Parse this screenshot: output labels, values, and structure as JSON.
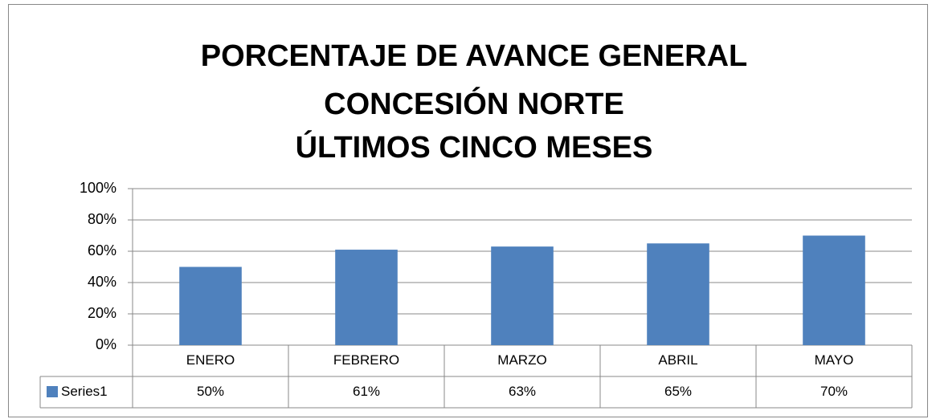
{
  "chart_data": {
    "type": "bar",
    "title": [
      "PORCENTAJE DE AVANCE GENERAL",
      "CONCESIÓN NORTE",
      "ÚLTIMOS CINCO MESES"
    ],
    "categories": [
      "ENERO",
      "FEBRERO",
      "MARZO",
      "ABRIL",
      "MAYO"
    ],
    "series": [
      {
        "name": "Series1",
        "color": "#4f81bd",
        "values": [
          50,
          61,
          63,
          65,
          70
        ],
        "value_labels": [
          "50%",
          "61%",
          "63%",
          "65%",
          "70%"
        ]
      }
    ],
    "ylim": [
      0,
      100
    ],
    "yticks": [
      {
        "value": 0,
        "label": "0%"
      },
      {
        "value": 20,
        "label": "20%"
      },
      {
        "value": 40,
        "label": "40%"
      },
      {
        "value": 60,
        "label": "60%"
      },
      {
        "value": 80,
        "label": "80%"
      },
      {
        "value": 100,
        "label": "100%"
      }
    ],
    "grid": true
  }
}
